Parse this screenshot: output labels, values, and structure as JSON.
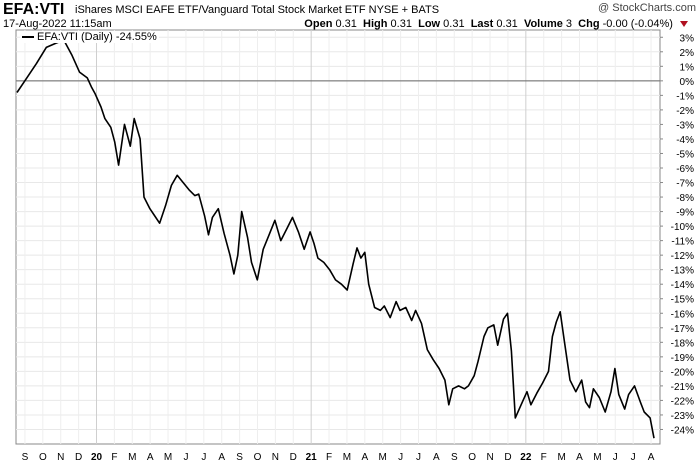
{
  "header": {
    "symbol": "EFA:VTI",
    "description": "iShares MSCI EAFE ETF/Vanguard Total Stock Market ETF  NYSE + BATS",
    "credit": "@ StockCharts.com",
    "date": "17-Aug-2022 11:15am",
    "open_label": "Open",
    "open": "0.31",
    "high_label": "High",
    "high": "0.31",
    "low_label": "Low",
    "low": "0.31",
    "last_label": "Last",
    "last": "0.31",
    "volume_label": "Volume",
    "volume": "3",
    "chg_label": "Chg",
    "chg": "-0.00 (-0.04%)",
    "chg_color": "#b01020"
  },
  "legend": {
    "label": "EFA:VTI (Daily) -24.55%"
  },
  "chart_data": {
    "type": "line",
    "ylim": [
      -25,
      3.5
    ],
    "y_ticks": [
      3,
      2,
      1,
      0,
      -1,
      -2,
      -3,
      -4,
      -5,
      -6,
      -7,
      -8,
      -9,
      -10,
      -11,
      -12,
      -13,
      -14,
      -15,
      -16,
      -17,
      -18,
      -19,
      -20,
      -21,
      -22,
      -23,
      -24
    ],
    "zero_line": true,
    "x_ticks": [
      "S",
      "O",
      "N",
      "D",
      "20",
      "F",
      "M",
      "A",
      "M",
      "J",
      "J",
      "A",
      "S",
      "O",
      "N",
      "D",
      "21",
      "F",
      "M",
      "A",
      "M",
      "J",
      "J",
      "A",
      "S",
      "O",
      "N",
      "D",
      "22",
      "F",
      "M",
      "A",
      "M",
      "J",
      "J",
      "A"
    ],
    "series": [
      {
        "name": "EFA:VTI (Daily) -24.55%",
        "values": [
          [
            0.0,
            -0.8
          ],
          [
            0.5,
            0.2
          ],
          [
            1.0,
            1.2
          ],
          [
            1.5,
            2.3
          ],
          [
            2.0,
            2.6
          ],
          [
            2.4,
            2.8
          ],
          [
            2.8,
            1.8
          ],
          [
            3.2,
            0.6
          ],
          [
            3.6,
            0.2
          ],
          [
            3.8,
            -0.4
          ],
          [
            4.0,
            -0.9
          ],
          [
            4.3,
            -1.8
          ],
          [
            4.5,
            -2.6
          ],
          [
            4.8,
            -3.2
          ],
          [
            5.0,
            -4.2
          ],
          [
            5.2,
            -5.8
          ],
          [
            5.5,
            -3.0
          ],
          [
            5.8,
            -4.5
          ],
          [
            6.0,
            -2.6
          ],
          [
            6.3,
            -4.0
          ],
          [
            6.5,
            -8.0
          ],
          [
            6.8,
            -8.8
          ],
          [
            7.0,
            -9.2
          ],
          [
            7.3,
            -9.8
          ],
          [
            7.6,
            -8.6
          ],
          [
            7.9,
            -7.2
          ],
          [
            8.2,
            -6.5
          ],
          [
            8.5,
            -7.0
          ],
          [
            8.8,
            -7.5
          ],
          [
            9.1,
            -7.9
          ],
          [
            9.3,
            -7.8
          ],
          [
            9.6,
            -9.3
          ],
          [
            9.8,
            -10.6
          ],
          [
            10.0,
            -9.4
          ],
          [
            10.3,
            -8.8
          ],
          [
            10.6,
            -10.5
          ],
          [
            10.9,
            -12.0
          ],
          [
            11.1,
            -13.3
          ],
          [
            11.3,
            -12.0
          ],
          [
            11.5,
            -9.0
          ],
          [
            11.8,
            -10.8
          ],
          [
            12.0,
            -12.5
          ],
          [
            12.3,
            -13.7
          ],
          [
            12.6,
            -11.6
          ],
          [
            12.9,
            -10.6
          ],
          [
            13.2,
            -9.6
          ],
          [
            13.5,
            -11.0
          ],
          [
            13.8,
            -10.2
          ],
          [
            14.1,
            -9.4
          ],
          [
            14.4,
            -10.4
          ],
          [
            14.7,
            -11.6
          ],
          [
            15.0,
            -10.4
          ],
          [
            15.2,
            -11.2
          ],
          [
            15.4,
            -12.2
          ],
          [
            15.7,
            -12.5
          ],
          [
            16.0,
            -13.0
          ],
          [
            16.3,
            -13.7
          ],
          [
            16.6,
            -14.0
          ],
          [
            16.9,
            -14.4
          ],
          [
            17.2,
            -12.6
          ],
          [
            17.4,
            -11.5
          ],
          [
            17.6,
            -12.2
          ],
          [
            17.8,
            -11.8
          ],
          [
            18.0,
            -14.0
          ],
          [
            18.3,
            -15.6
          ],
          [
            18.6,
            -15.8
          ],
          [
            18.8,
            -15.5
          ],
          [
            19.1,
            -16.3
          ],
          [
            19.4,
            -15.2
          ],
          [
            19.6,
            -15.8
          ],
          [
            19.9,
            -15.6
          ],
          [
            20.2,
            -16.5
          ],
          [
            20.4,
            -15.8
          ],
          [
            20.7,
            -16.7
          ],
          [
            21.0,
            -18.5
          ],
          [
            21.3,
            -19.2
          ],
          [
            21.6,
            -19.8
          ],
          [
            21.9,
            -20.6
          ],
          [
            22.1,
            -22.3
          ],
          [
            22.3,
            -21.2
          ],
          [
            22.6,
            -21.0
          ],
          [
            22.9,
            -21.2
          ],
          [
            23.1,
            -21.0
          ],
          [
            23.4,
            -20.3
          ],
          [
            23.6,
            -19.3
          ],
          [
            23.9,
            -17.6
          ],
          [
            24.1,
            -17.0
          ],
          [
            24.4,
            -16.8
          ],
          [
            24.6,
            -18.2
          ],
          [
            24.9,
            -16.4
          ],
          [
            25.1,
            -16.0
          ],
          [
            25.3,
            -18.6
          ],
          [
            25.5,
            -23.2
          ],
          [
            25.8,
            -22.3
          ],
          [
            26.1,
            -21.4
          ],
          [
            26.3,
            -22.3
          ],
          [
            26.6,
            -21.5
          ],
          [
            26.9,
            -20.8
          ],
          [
            27.2,
            -20.0
          ],
          [
            27.4,
            -17.6
          ],
          [
            27.6,
            -16.6
          ],
          [
            27.8,
            -15.9
          ],
          [
            28.0,
            -17.8
          ],
          [
            28.3,
            -20.6
          ],
          [
            28.6,
            -21.4
          ],
          [
            28.9,
            -20.6
          ],
          [
            29.1,
            -22.1
          ],
          [
            29.3,
            -22.5
          ],
          [
            29.5,
            -21.2
          ],
          [
            29.8,
            -21.8
          ],
          [
            30.1,
            -22.8
          ],
          [
            30.4,
            -21.4
          ],
          [
            30.6,
            -19.8
          ],
          [
            30.8,
            -21.6
          ],
          [
            31.1,
            -22.6
          ],
          [
            31.3,
            -21.6
          ],
          [
            31.6,
            -21.0
          ],
          [
            31.9,
            -22.1
          ],
          [
            32.1,
            -22.8
          ],
          [
            32.4,
            -23.2
          ],
          [
            32.6,
            -24.6
          ]
        ]
      }
    ]
  }
}
